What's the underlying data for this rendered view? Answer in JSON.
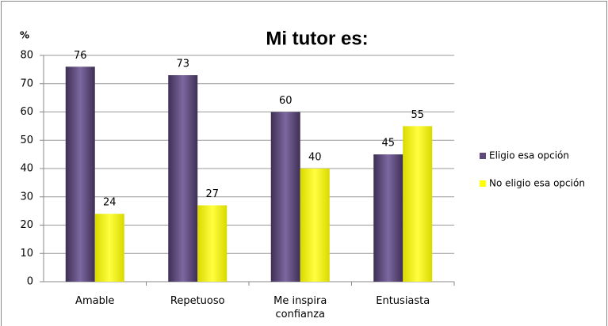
{
  "chart_data": {
    "type": "bar",
    "title": "Mi tutor es:",
    "y_label": "%",
    "categories": [
      "Amable",
      "Repetuoso",
      "Me inspira confianza",
      "Entusiasta"
    ],
    "series": [
      {
        "name": "Eligio esa opción",
        "color": "#604a7b",
        "values": [
          76,
          73,
          60,
          45
        ]
      },
      {
        "name": "No eligio esa opción",
        "color": "#ffff00",
        "values": [
          24,
          27,
          40,
          55
        ]
      }
    ],
    "ylim": [
      0,
      80
    ],
    "yticks": [
      0,
      10,
      20,
      30,
      40,
      50,
      60,
      70,
      80
    ],
    "grid": true,
    "legend_position": "right"
  }
}
